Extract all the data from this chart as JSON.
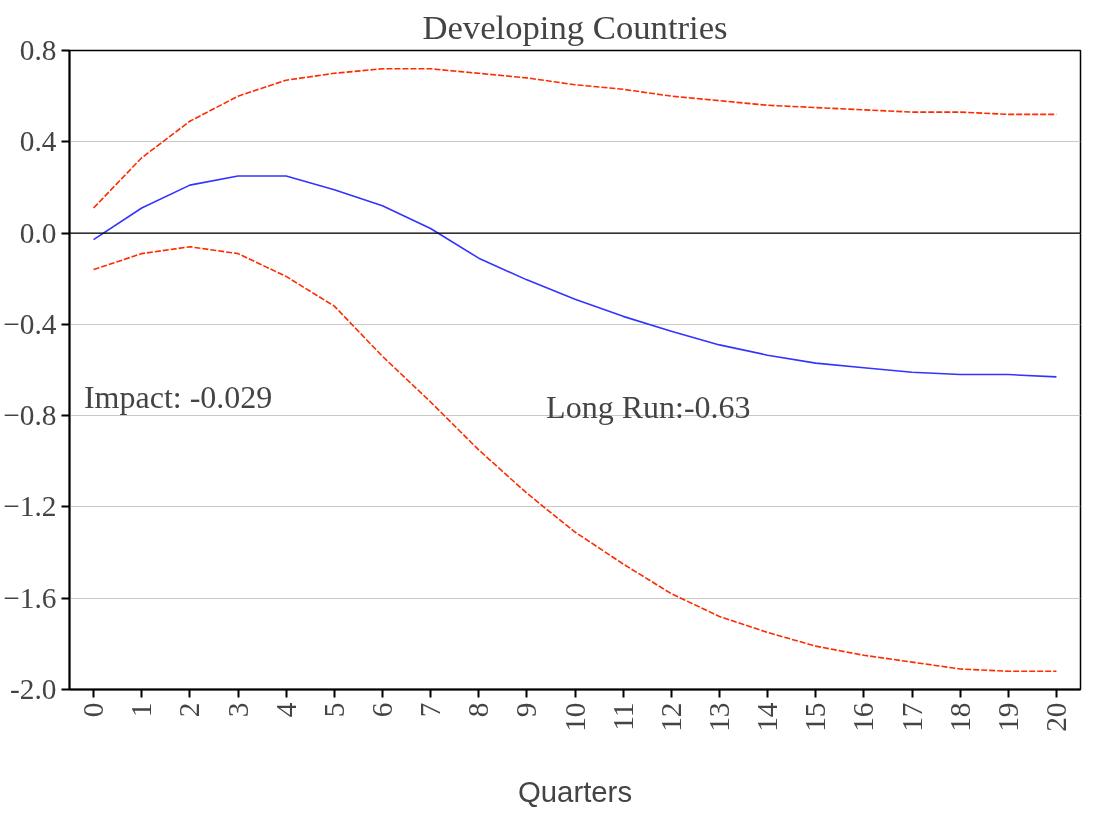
{
  "chart_data": {
    "type": "line",
    "title": "Developing Countries",
    "xlabel": "Quarters",
    "x": [
      0,
      1,
      2,
      3,
      4,
      5,
      6,
      7,
      8,
      9,
      10,
      11,
      12,
      13,
      14,
      15,
      16,
      17,
      18,
      19,
      20
    ],
    "xlim": [
      -0.5,
      20.5
    ],
    "xticks": [
      0,
      1,
      2,
      3,
      4,
      5,
      6,
      7,
      8,
      9,
      10,
      11,
      12,
      13,
      14,
      15,
      16,
      17,
      18,
      19,
      20
    ],
    "ylim": [
      -2.0,
      0.8
    ],
    "yticks": [
      {
        "value": -2.0,
        "label": "-2.0"
      },
      -1.6,
      -1.2,
      -0.8,
      -0.4,
      {
        "value": 0,
        "label": "0.0"
      },
      0.4,
      0.8
    ],
    "grid": "y",
    "marker": "none",
    "series": [
      {
        "color": "#3333ff",
        "line_style": "solid",
        "values": [
          -0.029,
          0.11,
          0.21,
          0.25,
          0.25,
          0.19,
          0.12,
          0.02,
          -0.11,
          -0.205,
          -0.29,
          -0.365,
          -0.43,
          -0.49,
          -0.535,
          -0.57,
          -0.59,
          -0.61,
          -0.62,
          -0.62,
          -0.63
        ]
      },
      {
        "color": "#ff2a00",
        "line_style": "dashed",
        "values": [
          0.11,
          0.33,
          0.49,
          0.6,
          0.67,
          0.7,
          0.72,
          0.72,
          0.7,
          0.68,
          0.65,
          0.63,
          0.6,
          0.58,
          0.56,
          0.55,
          0.54,
          0.53,
          0.53,
          0.52,
          0.52
        ]
      },
      {
        "color": "#ff2a00",
        "line_style": "dashed",
        "values": [
          -0.16,
          -0.09,
          -0.06,
          -0.09,
          -0.19,
          -0.32,
          -0.54,
          -0.74,
          -0.95,
          -1.14,
          -1.31,
          -1.45,
          -1.58,
          -1.68,
          -1.75,
          -1.81,
          -1.85,
          -1.88,
          -1.91,
          -1.92,
          -1.92
        ]
      }
    ],
    "ref_lines": [
      {
        "axis": "y",
        "value": 0,
        "color": "#000000"
      }
    ],
    "annotations": [
      "Impact: -0.029",
      "Long Run:-0.63"
    ]
  }
}
